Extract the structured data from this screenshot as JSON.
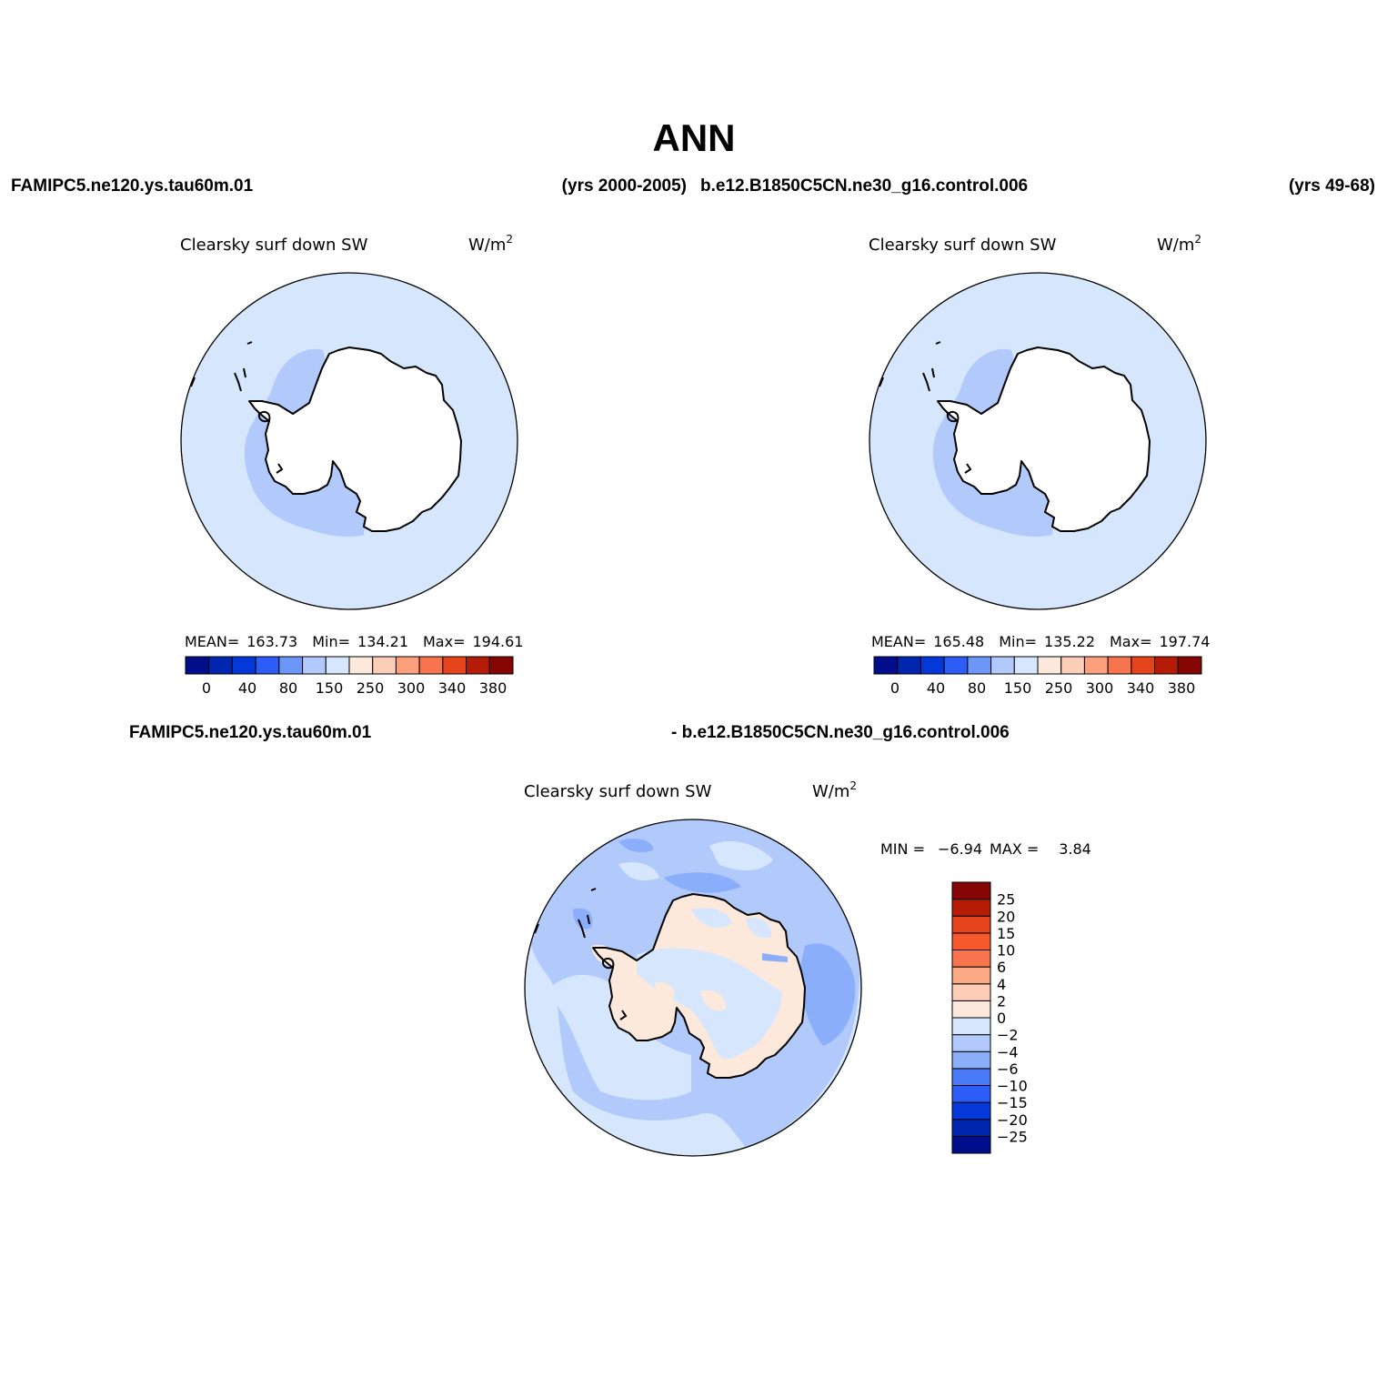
{
  "main_title": "ANN",
  "header": {
    "case1": "FAMIPC5.ne120.ys.tau60m.01",
    "years1": "(yrs 2000-2005)",
    "case2": "b.e12.B1850C5CN.ne30_g16.control.006",
    "years2": "(yrs 49-68)"
  },
  "diff_header": {
    "left": "FAMIPC5.ne120.ys.tau60m.01",
    "right": "- b.e12.B1850C5CN.ne30_g16.control.006"
  },
  "panels": [
    {
      "variable": "Clearsky surf down SW",
      "units": "W/m",
      "units_sup": "2",
      "mean_label": "MEAN=",
      "mean": "163.73",
      "min_label": "Min=",
      "min": "134.21",
      "max_label": "Max=",
      "max": "194.61"
    },
    {
      "variable": "Clearsky surf down SW",
      "units": "W/m",
      "units_sup": "2",
      "mean_label": "MEAN=",
      "mean": "165.48",
      "min_label": "Min=",
      "min": "135.22",
      "max_label": "Max=",
      "max": "197.74"
    }
  ],
  "diff_panel": {
    "variable": "Clearsky surf down SW",
    "units": "W/m",
    "units_sup": "2",
    "min_label": "MIN =",
    "min": "−6.94",
    "max_label": "MAX =",
    "max": "3.84"
  },
  "colorbar_abs": {
    "colors": [
      "#000e8c",
      "#0026b0",
      "#0438d8",
      "#2e5cf6",
      "#6c97f8",
      "#b1c9fb",
      "#d6e7fd",
      "#fde8dc",
      "#fccdb7",
      "#fb9f7d",
      "#f8744e",
      "#e5431c",
      "#b51c07",
      "#850404"
    ],
    "ticks": [
      "0",
      "40",
      "80",
      "150",
      "250",
      "300",
      "340",
      "380"
    ]
  },
  "colorbar_diff": {
    "colors": [
      "#000e8c",
      "#0026b0",
      "#0438d8",
      "#2e5cf6",
      "#4a7af7",
      "#8aaef9",
      "#b1c9fb",
      "#d6e7fd",
      "#fde8dc",
      "#fccdb7",
      "#fbaa85",
      "#f8744e",
      "#f7592e",
      "#e5431c",
      "#b51c07",
      "#850404"
    ],
    "ticks": [
      "−25",
      "−20",
      "−15",
      "−10",
      "−6",
      "−4",
      "−2",
      "0",
      "2",
      "4",
      "6",
      "10",
      "15",
      "20",
      "25"
    ]
  },
  "map_colors": {
    "ocean": "#d6e7fd",
    "plateau": "#b1c9fb",
    "diff_blue": "#b1c9fb",
    "diff_dark": "#8aaef9",
    "diff_land": "#fde8dc",
    "coast": "#000000"
  },
  "projection": "polar-stereographic-south"
}
